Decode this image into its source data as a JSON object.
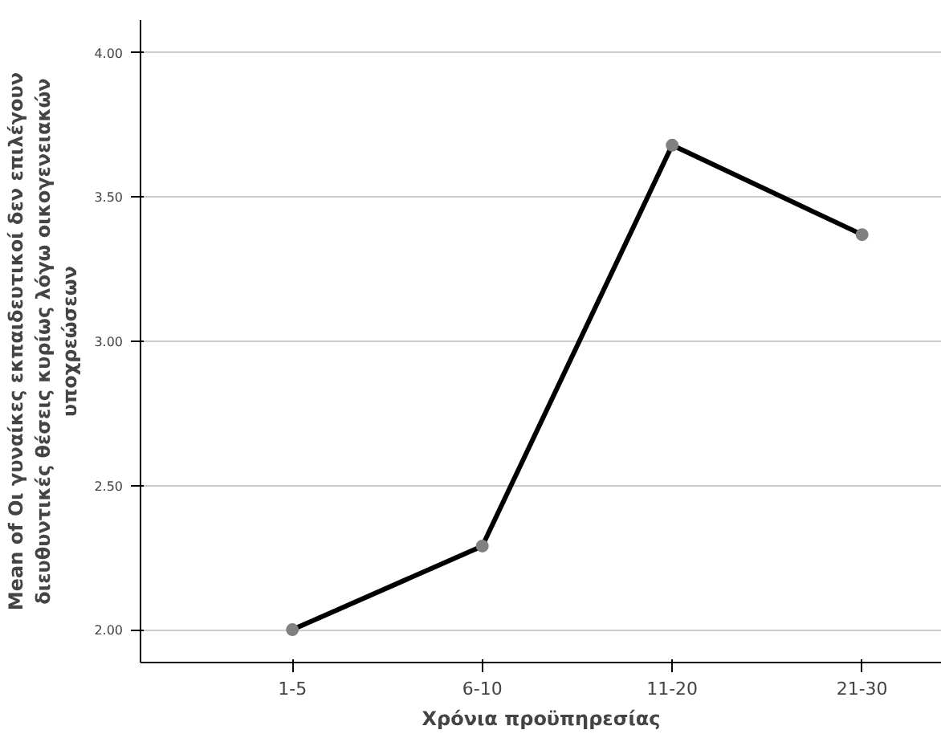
{
  "chart_data": {
    "type": "line",
    "xlabel": "Χρόνια προϋπηρεσίας",
    "ylabel": "Mean of Oι γυναίκες εκπαιδευτικοί δεν επιλέγουν διευθυντικές θέσεις κυρίως λόγω οικογενειακών υποχρεώσεων",
    "categories": [
      "1-5",
      "6-10",
      "11-20",
      "21-30"
    ],
    "series": [
      {
        "color": "#000000",
        "values": [
          2.0,
          2.29,
          3.68,
          3.37
        ]
      }
    ],
    "ylim": [
      1.886,
      4.114
    ],
    "yticks": [
      {
        "value": 2,
        "label": "2.00"
      },
      {
        "value": 2.5,
        "label": "2.50"
      },
      {
        "value": 3,
        "label": "3.00"
      },
      {
        "value": 3.5,
        "label": "3.50"
      },
      {
        "value": 4,
        "label": "4.00"
      }
    ],
    "grid": "y",
    "marker": "circle",
    "line_style": "solid"
  }
}
